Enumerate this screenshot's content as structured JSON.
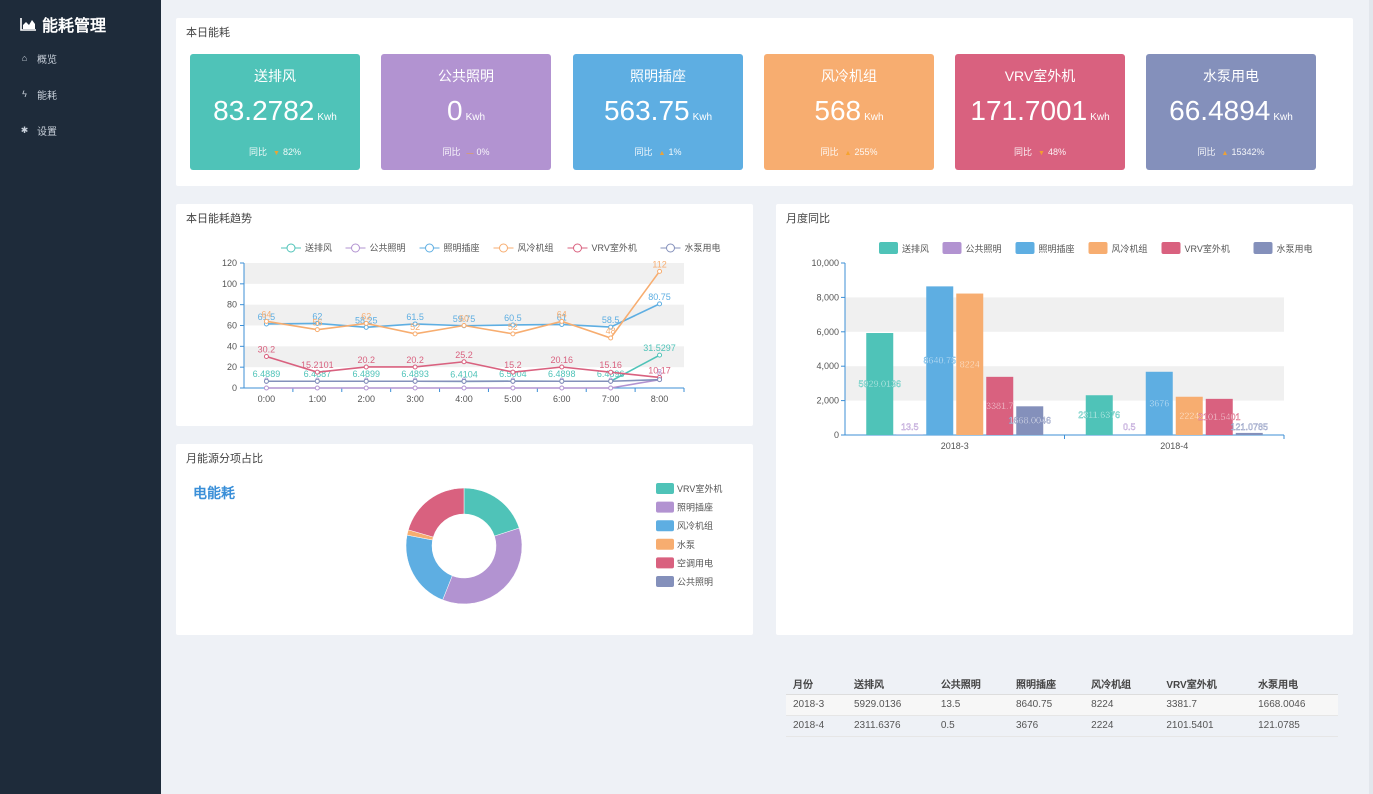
{
  "app": {
    "title": "能耗管理"
  },
  "nav": [
    {
      "label": "概览",
      "icon": "home-icon"
    },
    {
      "label": "能耗",
      "icon": "bolt-icon"
    },
    {
      "label": "设置",
      "icon": "gear-icon"
    }
  ],
  "today": {
    "title": "本日能耗",
    "compare_label": "同比",
    "cards": [
      {
        "name": "送排风",
        "value": "83.2782",
        "unit": "Kwh",
        "ratio": "82%",
        "direction": "down",
        "color": "#4fc3b8"
      },
      {
        "name": "公共照明",
        "value": "0",
        "unit": "Kwh",
        "ratio": "0%",
        "direction": "flat",
        "color": "#b293d1"
      },
      {
        "name": "照明插座",
        "value": "563.75",
        "unit": "Kwh",
        "ratio": "1%",
        "direction": "up",
        "color": "#5eaee2"
      },
      {
        "name": "风冷机组",
        "value": "568",
        "unit": "Kwh",
        "ratio": "255%",
        "direction": "up",
        "color": "#f7ad70"
      },
      {
        "name": "VRV室外机",
        "value": "171.7001",
        "unit": "Kwh",
        "ratio": "48%",
        "direction": "down",
        "color": "#d9617f"
      },
      {
        "name": "水泵用电",
        "value": "66.4894",
        "unit": "Kwh",
        "ratio": "15342%",
        "direction": "up",
        "color": "#8490bb"
      }
    ]
  },
  "trend": {
    "title": "本日能耗趋势"
  },
  "monthly": {
    "title": "月度同比"
  },
  "share": {
    "title": "月能源分项占比",
    "center_title": "电能耗"
  },
  "table": {
    "headers": [
      "月份",
      "送排风",
      "公共照明",
      "照明插座",
      "风冷机组",
      "VRV室外机",
      "水泵用电"
    ],
    "rows": [
      [
        "2018-3",
        "5929.0136",
        "13.5",
        "8640.75",
        "8224",
        "3381.7",
        "1668.0046"
      ],
      [
        "2018-4",
        "2311.6376",
        "0.5",
        "3676",
        "2224",
        "2101.5401",
        "121.0785"
      ]
    ]
  },
  "chart_data": [
    {
      "type": "line",
      "categories": [
        "0:00",
        "1:00",
        "2:00",
        "3:00",
        "4:00",
        "5:00",
        "6:00",
        "7:00",
        "8:00"
      ],
      "ylim": [
        0,
        120
      ],
      "yticks": [
        0,
        20,
        40,
        60,
        80,
        100,
        120
      ],
      "series": [
        {
          "name": "送排风",
          "color": "#4fc3b8",
          "values": [
            6.4889,
            6.4887,
            6.4899,
            6.4893,
            6.4104,
            6.5004,
            6.4898,
            6.4896,
            31.5297
          ],
          "labels": [
            "6.4889",
            "6.4887",
            "6.4899",
            "6.4893",
            "6.4104",
            "6.5004",
            "6.4898",
            "6.4896",
            "31.5297"
          ]
        },
        {
          "name": "公共照明",
          "color": "#b293d1",
          "values": [
            0,
            0,
            0,
            0,
            0,
            0,
            0,
            0,
            8
          ],
          "labels": [
            "0",
            "0",
            "0",
            "0",
            "0",
            "0",
            "0",
            "0",
            "8"
          ]
        },
        {
          "name": "照明插座",
          "color": "#5eaee2",
          "values": [
            61.5,
            62,
            58.25,
            61.5,
            59.75,
            60.5,
            61,
            58.5,
            80.75
          ],
          "labels": [
            "61.5",
            "62",
            "58.25",
            "61.5",
            "59.75",
            "60.5",
            "61",
            "58.5",
            "80.75"
          ]
        },
        {
          "name": "风冷机组",
          "color": "#f7ad70",
          "values": [
            64,
            56,
            62,
            52,
            60,
            52,
            64,
            48,
            112
          ],
          "labels": [
            "64",
            "56",
            "62",
            "52",
            "60",
            "52",
            "64",
            "48",
            "112"
          ]
        },
        {
          "name": "VRV室外机",
          "color": "#d9617f",
          "values": [
            30.2,
            15.2101,
            20.2,
            20.2,
            25.2,
            15.2,
            20.16,
            15.16,
            10.17
          ],
          "labels": [
            "30.2",
            "15.2101",
            "20.2",
            "20.2",
            "25.2",
            "15.2",
            "20.16",
            "15.16",
            "10.17"
          ]
        },
        {
          "name": "水泵用电",
          "color": "#8490bb",
          "values": [
            6.4889,
            6.4887,
            6.4899,
            6.4893,
            6.4104,
            6.5004,
            6.4898,
            6.4896,
            8
          ],
          "labels": [
            "",
            "",
            "",
            "",
            "",
            "",
            "",
            "",
            ""
          ]
        }
      ]
    },
    {
      "type": "bar",
      "categories": [
        "2018-3",
        "2018-4"
      ],
      "ylim": [
        0,
        10000
      ],
      "yticks": [
        0,
        2000,
        4000,
        6000,
        8000,
        10000
      ],
      "ytick_labels": [
        "0",
        "2,000",
        "4,000",
        "6,000",
        "8,000",
        "10,000"
      ],
      "series": [
        {
          "name": "送排风",
          "color": "#4fc3b8",
          "values": [
            5929.0136,
            2311.6376
          ]
        },
        {
          "name": "公共照明",
          "color": "#b293d1",
          "values": [
            13.5,
            0.5
          ]
        },
        {
          "name": "照明插座",
          "color": "#5eaee2",
          "values": [
            8640.75,
            3676
          ]
        },
        {
          "name": "风冷机组",
          "color": "#f7ad70",
          "values": [
            8224,
            2224
          ]
        },
        {
          "name": "VRV室外机",
          "color": "#d9617f",
          "values": [
            3381.7,
            2101.5401
          ]
        },
        {
          "name": "水泵用电",
          "color": "#8490bb",
          "values": [
            1668.0046,
            121.0785
          ]
        }
      ]
    },
    {
      "type": "pie",
      "donut": true,
      "slices": [
        {
          "name": "VRV室外机",
          "color": "#4fc3b8",
          "value": 20
        },
        {
          "name": "照明插座",
          "color": "#b293d1",
          "value": 36
        },
        {
          "name": "风冷机组",
          "color": "#5eaee2",
          "value": 22
        },
        {
          "name": "水泵",
          "color": "#f7ad70",
          "value": 1.5
        },
        {
          "name": "空调用电",
          "color": "#d9617f",
          "value": 20.5
        },
        {
          "name": "公共照明",
          "color": "#8490bb",
          "value": 0
        }
      ]
    }
  ]
}
